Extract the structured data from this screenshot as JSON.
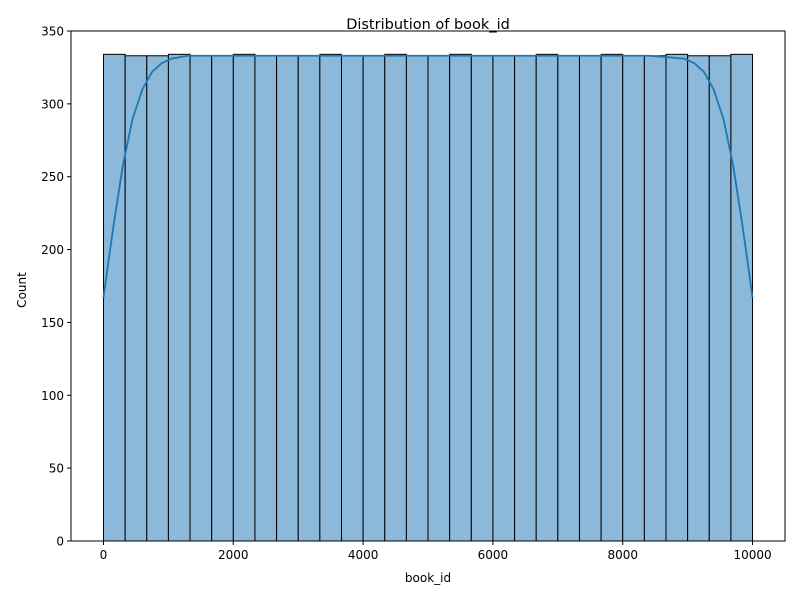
{
  "chart_data": {
    "type": "bar",
    "title": "Distribution of book_id",
    "xlabel": "book_id",
    "ylabel": "Count",
    "xlim": [
      -500,
      10500
    ],
    "ylim": [
      0,
      350
    ],
    "xticks": [
      0,
      2000,
      4000,
      6000,
      8000,
      10000
    ],
    "yticks": [
      0,
      50,
      100,
      150,
      200,
      250,
      300,
      350
    ],
    "bin_start": 1,
    "bin_width": 333.3,
    "values": [
      334,
      333,
      333,
      334,
      333,
      333,
      334,
      333,
      333,
      333,
      334,
      333,
      333,
      334,
      333,
      333,
      334,
      333,
      333,
      333,
      334,
      333,
      333,
      334,
      333,
      333,
      334,
      333,
      333,
      334
    ],
    "kde": {
      "x": [
        0,
        150,
        300,
        450,
        600,
        750,
        900,
        1050,
        1300,
        1600,
        2000,
        3000,
        4000,
        5000,
        6000,
        7000,
        8000,
        8400,
        8700,
        8950,
        9100,
        9250,
        9400,
        9550,
        9700,
        9850,
        10000
      ],
      "y": [
        167,
        215,
        258,
        290,
        310,
        322,
        328,
        331,
        333,
        333,
        333,
        333,
        333,
        333,
        333,
        333,
        333,
        333,
        332,
        331,
        328,
        322,
        310,
        290,
        258,
        215,
        167
      ]
    },
    "colors": {
      "bar_fill": "#8cb8d9",
      "bar_edge": "#000000",
      "kde_line": "#1f77b4",
      "axis": "#000000"
    },
    "grid": false,
    "legend": "none"
  }
}
